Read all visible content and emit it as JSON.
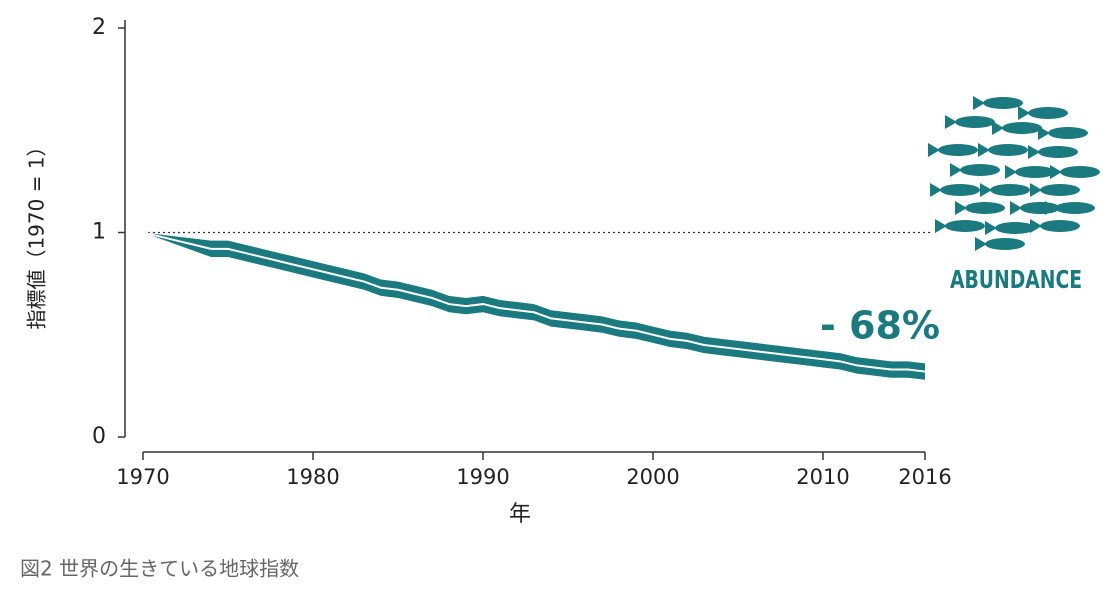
{
  "chart_data": {
    "type": "line",
    "title": "図2 世界の生きている地球指数",
    "y_label": "指標値（1970 = 1）",
    "x_label": "年",
    "annotation": "- 68%",
    "icon_label": "ABUNDANCE",
    "color": "#1a7a80",
    "line_color": "#ffffff",
    "x": [
      1970,
      1971,
      1972,
      1973,
      1974,
      1975,
      1976,
      1977,
      1978,
      1979,
      1980,
      1981,
      1982,
      1983,
      1984,
      1985,
      1986,
      1987,
      1988,
      1989,
      1990,
      1991,
      1992,
      1993,
      1994,
      1995,
      1996,
      1997,
      1998,
      1999,
      2000,
      2001,
      2002,
      2003,
      2004,
      2005,
      2006,
      2007,
      2008,
      2009,
      2010,
      2011,
      2012,
      2013,
      2014,
      2015,
      2016
    ],
    "values": [
      1.0,
      0.98,
      0.96,
      0.94,
      0.92,
      0.92,
      0.9,
      0.88,
      0.86,
      0.84,
      0.82,
      0.8,
      0.78,
      0.76,
      0.73,
      0.72,
      0.7,
      0.68,
      0.65,
      0.64,
      0.65,
      0.63,
      0.62,
      0.61,
      0.58,
      0.57,
      0.56,
      0.55,
      0.53,
      0.52,
      0.5,
      0.48,
      0.47,
      0.45,
      0.44,
      0.43,
      0.42,
      0.41,
      0.4,
      0.39,
      0.38,
      0.37,
      0.35,
      0.34,
      0.33,
      0.33,
      0.32
    ],
    "upper": [
      1.0,
      0.99,
      0.98,
      0.97,
      0.96,
      0.96,
      0.94,
      0.92,
      0.9,
      0.88,
      0.86,
      0.84,
      0.82,
      0.8,
      0.77,
      0.76,
      0.74,
      0.72,
      0.69,
      0.68,
      0.69,
      0.67,
      0.66,
      0.65,
      0.62,
      0.61,
      0.6,
      0.59,
      0.57,
      0.56,
      0.54,
      0.52,
      0.51,
      0.49,
      0.48,
      0.47,
      0.46,
      0.45,
      0.44,
      0.43,
      0.42,
      0.41,
      0.39,
      0.38,
      0.37,
      0.37,
      0.36
    ],
    "lower": [
      1.0,
      0.97,
      0.94,
      0.91,
      0.88,
      0.88,
      0.86,
      0.84,
      0.82,
      0.8,
      0.78,
      0.76,
      0.74,
      0.72,
      0.69,
      0.68,
      0.66,
      0.64,
      0.61,
      0.6,
      0.61,
      0.59,
      0.58,
      0.57,
      0.54,
      0.53,
      0.52,
      0.51,
      0.49,
      0.48,
      0.46,
      0.44,
      0.43,
      0.41,
      0.4,
      0.39,
      0.38,
      0.37,
      0.36,
      0.35,
      0.34,
      0.33,
      0.31,
      0.3,
      0.29,
      0.29,
      0.28
    ],
    "reference_line": 1,
    "xlim": [
      1970,
      2016
    ],
    "xticks": [
      1970,
      1980,
      1990,
      2000,
      2010,
      2016
    ],
    "ylim": [
      0,
      2
    ],
    "yticks": [
      0,
      1,
      2
    ]
  }
}
